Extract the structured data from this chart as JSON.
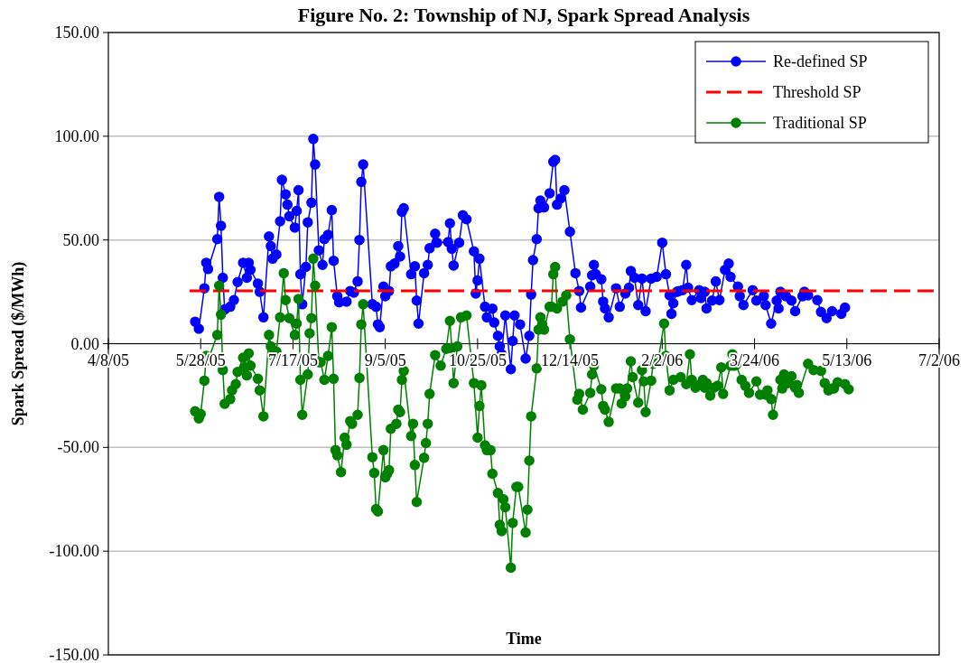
{
  "chart_data": {
    "type": "line",
    "title": "Figure No. 2: Township of NJ, Spark Spread Analysis",
    "xlabel": "Time",
    "ylabel": "Spark Spread ($/MWh)",
    "xlim": [
      "2005-04-08",
      "2006-07-02"
    ],
    "xticks": [
      {
        "value": "2005-04-08",
        "label": "4/8/05"
      },
      {
        "value": "2005-05-28",
        "label": "5/28/05"
      },
      {
        "value": "2005-07-17",
        "label": "7/17/05"
      },
      {
        "value": "2005-09-05",
        "label": "9/5/05"
      },
      {
        "value": "2005-10-25",
        "label": "10/25/05"
      },
      {
        "value": "2005-12-14",
        "label": "12/14/05"
      },
      {
        "value": "2006-02-02",
        "label": "2/2/06"
      },
      {
        "value": "2006-03-24",
        "label": "3/24/06"
      },
      {
        "value": "2006-05-13",
        "label": "5/13/06"
      },
      {
        "value": "2006-07-02",
        "label": "7/2/06"
      }
    ],
    "ylim": [
      -150,
      150
    ],
    "yticks": [
      {
        "value": -150,
        "label": "-150.00"
      },
      {
        "value": -100,
        "label": "-100.00"
      },
      {
        "value": -50,
        "label": "-50.00"
      },
      {
        "value": 0,
        "label": "0.00"
      },
      {
        "value": 50,
        "label": "50.00"
      },
      {
        "value": 100,
        "label": "100.00"
      },
      {
        "value": 150,
        "label": "150.00"
      }
    ],
    "grid": "y",
    "legend": "top right",
    "series": [
      {
        "name": "Re-defined SP",
        "color": "#0000ff",
        "marker": "circle",
        "line_style": "solid",
        "x": [
          "2005-05-25",
          "2005-05-27",
          "2005-05-30",
          "2005-05-31",
          "2005-06-01",
          "2005-06-06",
          "2005-06-07",
          "2005-06-08",
          "2005-06-09",
          "2005-06-10",
          "2005-06-13",
          "2005-06-15",
          "2005-06-17",
          "2005-06-20",
          "2005-06-22",
          "2005-06-23",
          "2005-06-24",
          "2005-06-28",
          "2005-06-29",
          "2005-07-01",
          "2005-07-04",
          "2005-07-05",
          "2005-07-06",
          "2005-07-08",
          "2005-07-10",
          "2005-07-11",
          "2005-07-13",
          "2005-07-14",
          "2005-07-15",
          "2005-07-18",
          "2005-07-19",
          "2005-07-20",
          "2005-07-21",
          "2005-07-22",
          "2005-07-24",
          "2005-07-25",
          "2005-07-27",
          "2005-07-28",
          "2005-07-29",
          "2005-07-31",
          "2005-08-02",
          "2005-08-03",
          "2005-08-05",
          "2005-08-07",
          "2005-08-08",
          "2005-08-10",
          "2005-08-11",
          "2005-08-15",
          "2005-08-17",
          "2005-08-19",
          "2005-08-21",
          "2005-08-22",
          "2005-08-23",
          "2005-08-24",
          "2005-08-29",
          "2005-08-31",
          "2005-09-01",
          "2005-09-02",
          "2005-09-04",
          "2005-09-05",
          "2005-09-07",
          "2005-09-08",
          "2005-09-10",
          "2005-09-12",
          "2005-09-13",
          "2005-09-14",
          "2005-09-15",
          "2005-09-19",
          "2005-09-21",
          "2005-09-22",
          "2005-09-23",
          "2005-09-26",
          "2005-09-28",
          "2005-09-29",
          "2005-10-02",
          "2005-10-03",
          "2005-10-09",
          "2005-10-10",
          "2005-10-11",
          "2005-10-12",
          "2005-10-15",
          "2005-10-17",
          "2005-10-19",
          "2005-10-23",
          "2005-10-24",
          "2005-10-25",
          "2005-10-26",
          "2005-10-29",
          "2005-10-30",
          "2005-11-02",
          "2005-11-03",
          "2005-11-05",
          "2005-11-06",
          "2005-11-07",
          "2005-11-09",
          "2005-11-12",
          "2005-11-13",
          "2005-11-14",
          "2005-11-17",
          "2005-11-20",
          "2005-11-22",
          "2005-11-23",
          "2005-11-24",
          "2005-11-26",
          "2005-11-27",
          "2005-11-28",
          "2005-11-30",
          "2005-12-03",
          "2005-12-05",
          "2005-12-06",
          "2005-12-07",
          "2005-12-09",
          "2005-12-11",
          "2005-12-14",
          "2005-12-17",
          "2005-12-19",
          "2005-12-20",
          "2005-12-25",
          "2005-12-26",
          "2005-12-27",
          "2005-12-28",
          "2005-12-31",
          "2006-01-01",
          "2006-01-02",
          "2006-01-04",
          "2006-01-08",
          "2006-01-10",
          "2006-01-13",
          "2006-01-15",
          "2006-01-16",
          "2006-01-18",
          "2006-01-20",
          "2006-01-22",
          "2006-01-24",
          "2006-01-27",
          "2006-01-30",
          "2006-02-02",
          "2006-02-04",
          "2006-02-06",
          "2006-02-07",
          "2006-02-08",
          "2006-02-10",
          "2006-02-11",
          "2006-02-13",
          "2006-02-15",
          "2006-02-16",
          "2006-02-18",
          "2006-02-22",
          "2006-02-23",
          "2006-02-25",
          "2006-02-26",
          "2006-03-01",
          "2006-03-03",
          "2006-03-05",
          "2006-03-08",
          "2006-03-10",
          "2006-03-11",
          "2006-03-15",
          "2006-03-16",
          "2006-03-18",
          "2006-03-23",
          "2006-03-25",
          "2006-03-29",
          "2006-03-30",
          "2006-04-02",
          "2006-04-05",
          "2006-04-06",
          "2006-04-07",
          "2006-04-10",
          "2006-04-13",
          "2006-04-15",
          "2006-04-19",
          "2006-04-20",
          "2006-04-22",
          "2006-04-27",
          "2006-04-29",
          "2006-05-02",
          "2006-05-05",
          "2006-05-10",
          "2006-05-12"
        ],
        "values": [
          10.6,
          7.2,
          26.7,
          39,
          36,
          50.4,
          70.8,
          56.8,
          31.8,
          16.5,
          17.8,
          21,
          29.7,
          39,
          31.8,
          39,
          35.6,
          29,
          25,
          12.7,
          51.7,
          47,
          41,
          43,
          59,
          79,
          72,
          67,
          61.4,
          56,
          64,
          74,
          33.5,
          19,
          37,
          58.5,
          68,
          98.7,
          86.4,
          45,
          38,
          50.4,
          52.5,
          64.4,
          40,
          22.9,
          19.9,
          20.3,
          25.4,
          24.6,
          30,
          50,
          78,
          86.4,
          19,
          17.8,
          9.3,
          8,
          27.5,
          22.9,
          25.4,
          37.3,
          38.6,
          47,
          42,
          63.6,
          65.3,
          33.5,
          37.3,
          20.8,
          9.7,
          34,
          38,
          46,
          53,
          48.7,
          49,
          58,
          45.8,
          37.7,
          48.7,
          61.9,
          60,
          44.5,
          24.2,
          30.5,
          41,
          17.8,
          12.7,
          16.9,
          10.2,
          3.8,
          -1.3,
          -5,
          13.6,
          -12.3,
          1.3,
          13.6,
          9.3,
          -7.2,
          3.8,
          23.7,
          40.3,
          50.4,
          65.3,
          69,
          65.7,
          72.5,
          87.7,
          88.6,
          67,
          70,
          74,
          54,
          34,
          25.4,
          17.4,
          27.5,
          33,
          38,
          33.5,
          31,
          20.3,
          17,
          12.7,
          26.7,
          17.8,
          24.2,
          27,
          35,
          31.8,
          18.6,
          31.4,
          15.7,
          31.4,
          32.2,
          48.7,
          33.5,
          23.3,
          14.4,
          19.5,
          25,
          25.4,
          25.8,
          38,
          27,
          21,
          25.8,
          22,
          25,
          17,
          20.8,
          30,
          21,
          35.6,
          38.6,
          32.2,
          27.5,
          22.9,
          18.6,
          25.8,
          20.8,
          22.9,
          18.6,
          9.7,
          20.8,
          17,
          25,
          22.9,
          20.8,
          15.7,
          22.9,
          25,
          23.3,
          21,
          15.3,
          12.3,
          15.7,
          14.4,
          17.4
        ]
      },
      {
        "name": "Threshold SP",
        "color": "#ff0000",
        "marker": "none",
        "line_style": "dashed",
        "x": [
          "2005-05-22",
          "2006-07-02"
        ],
        "values": [
          25.5,
          25.5
        ]
      },
      {
        "name": "Traditional SP",
        "color": "#008000",
        "marker": "circle",
        "line_style": "solid",
        "x": [
          "2005-05-25",
          "2005-05-27",
          "2005-05-28",
          "2005-05-30",
          "2005-05-31",
          "2005-06-01",
          "2005-06-06",
          "2005-06-07",
          "2005-06-08",
          "2005-06-09",
          "2005-06-10",
          "2005-06-13",
          "2005-06-14",
          "2005-06-16",
          "2005-06-17",
          "2005-06-20",
          "2005-06-21",
          "2005-06-22",
          "2005-06-23",
          "2005-06-24",
          "2005-06-28",
          "2005-06-29",
          "2005-07-01",
          "2005-07-04",
          "2005-07-05",
          "2005-07-06",
          "2005-07-08",
          "2005-07-10",
          "2005-07-12",
          "2005-07-13",
          "2005-07-15",
          "2005-07-18",
          "2005-07-19",
          "2005-07-20",
          "2005-07-21",
          "2005-07-22",
          "2005-07-25",
          "2005-07-26",
          "2005-07-27",
          "2005-07-28",
          "2005-07-29",
          "2005-07-31",
          "2005-08-01",
          "2005-08-03",
          "2005-08-05",
          "2005-08-07",
          "2005-08-08",
          "2005-08-09",
          "2005-08-10",
          "2005-08-12",
          "2005-08-14",
          "2005-08-15",
          "2005-08-17",
          "2005-08-18",
          "2005-08-21",
          "2005-08-22",
          "2005-08-23",
          "2005-08-24",
          "2005-08-29",
          "2005-08-30",
          "2005-08-31",
          "2005-09-01",
          "2005-09-04",
          "2005-09-05",
          "2005-09-06",
          "2005-09-07",
          "2005-09-08",
          "2005-09-11",
          "2005-09-12",
          "2005-09-13",
          "2005-09-14",
          "2005-09-15",
          "2005-09-19",
          "2005-09-20",
          "2005-09-21",
          "2005-09-22",
          "2005-09-26",
          "2005-09-27",
          "2005-09-28",
          "2005-09-29",
          "2005-10-02",
          "2005-10-05",
          "2005-10-08",
          "2005-10-10",
          "2005-10-11",
          "2005-10-12",
          "2005-10-14",
          "2005-10-16",
          "2005-10-19",
          "2005-10-23",
          "2005-10-25",
          "2005-10-26",
          "2005-10-27",
          "2005-10-29",
          "2005-10-30",
          "2005-11-01",
          "2005-11-02",
          "2005-11-05",
          "2005-11-06",
          "2005-11-07",
          "2005-11-08",
          "2005-11-09",
          "2005-11-12",
          "2005-11-13",
          "2005-11-15",
          "2005-11-16",
          "2005-11-20",
          "2005-11-21",
          "2005-11-22",
          "2005-11-23",
          "2005-11-26",
          "2005-11-27",
          "2005-11-28",
          "2005-11-29",
          "2005-11-30",
          "2005-12-03",
          "2005-12-04",
          "2005-12-05",
          "2005-12-06",
          "2005-12-07",
          "2005-12-10",
          "2005-12-12",
          "2005-12-14",
          "2005-12-18",
          "2005-12-19",
          "2005-12-21",
          "2005-12-25",
          "2005-12-26",
          "2005-12-27",
          "2005-12-31",
          "2006-01-01",
          "2006-01-02",
          "2006-01-04",
          "2006-01-08",
          "2006-01-10",
          "2006-01-11",
          "2006-01-13",
          "2006-01-14",
          "2006-01-16",
          "2006-01-17",
          "2006-01-20",
          "2006-01-22",
          "2006-01-23",
          "2006-01-24",
          "2006-01-27",
          "2006-01-28",
          "2006-01-30",
          "2006-01-31",
          "2006-02-03",
          "2006-02-04",
          "2006-02-06",
          "2006-02-08",
          "2006-02-12",
          "2006-02-15",
          "2006-02-17",
          "2006-02-18",
          "2006-02-20",
          "2006-02-22",
          "2006-02-24",
          "2006-02-25",
          "2006-02-26",
          "2006-02-28",
          "2006-03-02",
          "2006-03-04",
          "2006-03-06",
          "2006-03-07",
          "2006-03-11",
          "2006-03-12",
          "2006-03-13",
          "2006-03-14",
          "2006-03-17",
          "2006-03-19",
          "2006-03-21",
          "2006-03-25",
          "2006-03-27",
          "2006-03-30",
          "2006-03-31",
          "2006-04-02",
          "2006-04-03",
          "2006-04-07",
          "2006-04-08",
          "2006-04-09",
          "2006-04-11",
          "2006-04-13",
          "2006-04-15",
          "2006-04-16",
          "2006-04-17",
          "2006-04-22",
          "2006-04-25",
          "2006-04-29",
          "2006-05-01",
          "2006-05-03",
          "2006-05-05",
          "2006-05-06",
          "2006-05-08",
          "2006-05-12",
          "2006-05-14"
        ],
        "values": [
          -32.6,
          -36,
          -33.9,
          -17.8,
          -5.9,
          -8,
          4.2,
          28,
          14,
          -12.7,
          -29,
          -26.7,
          -22.5,
          -19.5,
          -13.6,
          -6.8,
          -11.4,
          -15.3,
          -4.7,
          -10.6,
          -16.9,
          -22.5,
          -35,
          4.2,
          -1.3,
          -5.5,
          -3.8,
          12.7,
          34,
          21,
          12.3,
          4.2,
          9.7,
          21.6,
          -17.4,
          -34.3,
          -14.8,
          5,
          12.3,
          41,
          28,
          -8.9,
          -8.9,
          -17.4,
          -5.9,
          8,
          -16.9,
          -51.3,
          -53.8,
          -61.9,
          -45.3,
          -48.7,
          -37.3,
          -38.6,
          -34.3,
          -16.5,
          9.3,
          19,
          -54.7,
          -62.3,
          -79.7,
          -80.9,
          -51.3,
          -64.4,
          -62.7,
          -61,
          -41,
          -38.6,
          -31.8,
          -33,
          -17.4,
          -13.1,
          -44.5,
          -38.6,
          -58.5,
          -76.3,
          -55,
          -47.9,
          -38.6,
          -24.2,
          -5.5,
          -10.6,
          -2.5,
          11,
          -2.1,
          -19,
          -1.3,
          12.7,
          13.6,
          -19,
          -45.3,
          -30,
          -20,
          -49,
          -51.3,
          -51.3,
          -62.7,
          -72,
          -87.3,
          -90.3,
          -75,
          -78.8,
          -108,
          -86.4,
          -69,
          -69,
          -91,
          -80,
          -56.4,
          -35,
          -11.9,
          6.8,
          12.7,
          9.3,
          6.8,
          17.8,
          17.8,
          33.5,
          37,
          17,
          20.3,
          23.3,
          2.1,
          -27,
          -24.2,
          -31.8,
          -23.7,
          -14.8,
          -10.6,
          -22,
          -30,
          -31.8,
          -37.7,
          -21.6,
          -21.6,
          -28.8,
          -25.4,
          -21.6,
          -8.5,
          -16.1,
          -28.4,
          -12.7,
          -18.2,
          -33,
          -17.8,
          -9.7,
          -8.9,
          -6.8,
          9.7,
          -5.9,
          -22.5,
          -17.4,
          -16.1,
          -19.5,
          -5.1,
          -17.4,
          -21.2,
          -19.9,
          -17.4,
          -21.2,
          -19,
          -25,
          -21.2,
          -20.3,
          -11.4,
          -24.2,
          -10.6,
          -5.1,
          -10.6,
          -10.2,
          -17.4,
          -20.3,
          -23.7,
          -18.2,
          -24.6,
          -24.6,
          -22.5,
          -26.7,
          -34.3,
          -17.4,
          -21.6,
          -14.8,
          -19,
          -15.7,
          -21.2,
          -19.9,
          -23.7,
          -9.7,
          -12.7,
          -13.1,
          -19,
          -22.5,
          -21.6,
          -21.6,
          -18.6,
          -19.5,
          -22
        ]
      }
    ]
  }
}
